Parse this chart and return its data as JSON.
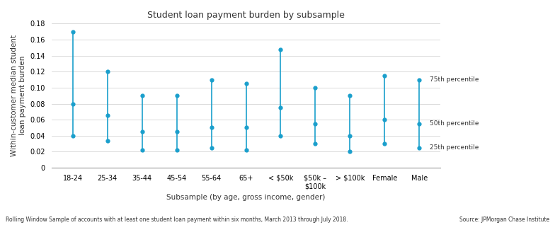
{
  "title": "Student loan payment burden by subsample",
  "xlabel": "Subsample (by age, gross income, gender)",
  "ylabel": "Within-customer median student\nloan payment burden",
  "categories": [
    "18-24",
    "25-34",
    "35-44",
    "45-54",
    "55-64",
    "65+",
    "< $50k",
    "$50k –\n$100k",
    "> $100k",
    "Female",
    "Male"
  ],
  "p25": [
    0.04,
    0.034,
    0.022,
    0.022,
    0.025,
    0.022,
    0.04,
    0.03,
    0.02,
    0.03,
    0.025
  ],
  "p50": [
    0.08,
    0.065,
    0.045,
    0.045,
    0.05,
    0.05,
    0.075,
    0.055,
    0.04,
    0.06,
    0.055
  ],
  "p75": [
    0.17,
    0.12,
    0.09,
    0.09,
    0.11,
    0.105,
    0.148,
    0.1,
    0.09,
    0.115,
    0.11
  ],
  "line_color": "#1a9fcc",
  "dot_color": "#1a9fcc",
  "background_color": "#ffffff",
  "grid_color": "#cccccc",
  "title_fontsize": 9,
  "label_fontsize": 7.5,
  "tick_fontsize": 7,
  "footnote": "Rolling Window Sample of accounts with at least one student loan payment within six months, March 2013 through July 2018.",
  "source": "Source: JPMorgan Chase Institute",
  "ylim": [
    0,
    0.18
  ],
  "yticks": [
    0,
    0.02,
    0.04,
    0.06,
    0.08,
    0.1,
    0.12,
    0.14,
    0.16,
    0.18
  ],
  "legend_labels": [
    "75th percentile",
    "50th percentile",
    "25th percentile"
  ]
}
